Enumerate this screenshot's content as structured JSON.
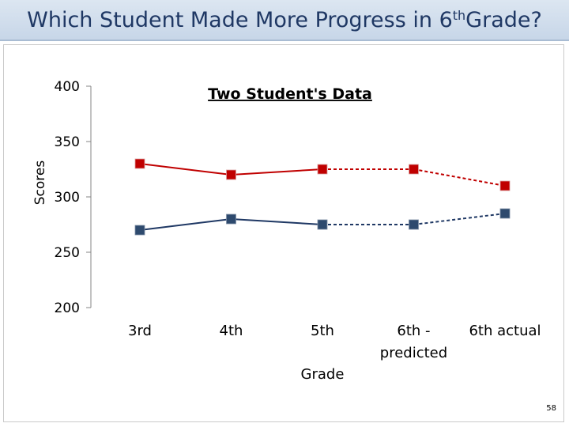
{
  "slide": {
    "title_main": "Which Student Made More Progress in 6",
    "title_sup": "th",
    "title_end": " Grade?",
    "page_number": "58"
  },
  "colors": {
    "series_red": "#c00000",
    "series_blue": "#1f3864",
    "marker_blue": "#2e4a6e",
    "title_bar": "#dce6f1"
  },
  "chart_data": {
    "type": "line",
    "title": "Two Student's Data",
    "xlabel": "Grade",
    "ylabel": "Scores",
    "ylim": [
      200,
      400
    ],
    "yticks": [
      200,
      250,
      300,
      350,
      400
    ],
    "grid": false,
    "categories": [
      "3rd",
      "4th",
      "5th",
      "6th -\npredicted",
      "6th actual"
    ],
    "series": [
      {
        "color": "#c00000",
        "values": [
          330,
          320,
          325,
          325,
          310
        ],
        "dashed_from_index": 3
      },
      {
        "color": "#1f3864",
        "values": [
          270,
          280,
          275,
          275,
          285
        ],
        "dashed_from_index": 3
      }
    ]
  }
}
